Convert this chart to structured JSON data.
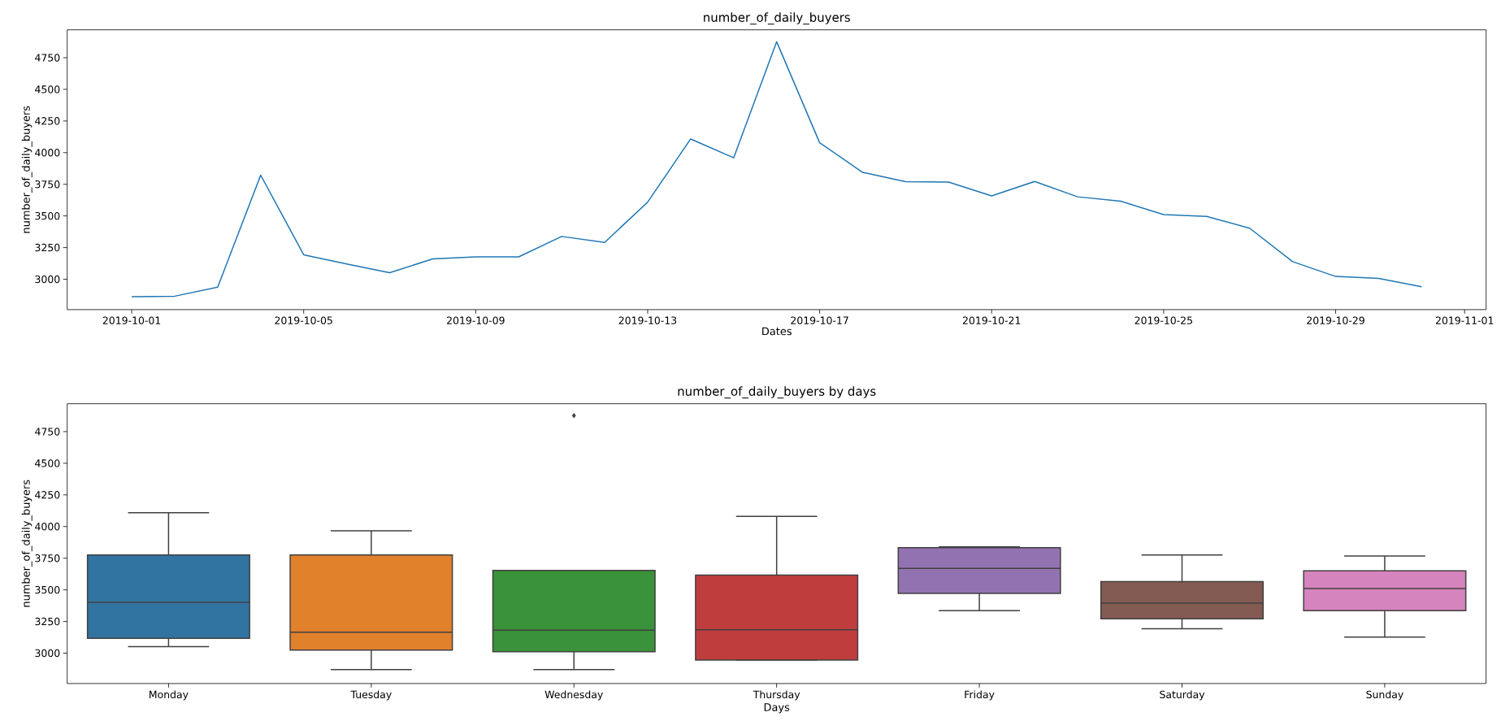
{
  "chart_data": [
    {
      "type": "line",
      "title": "number_of_daily_buyers",
      "xlabel": "Dates",
      "ylabel": "number_of_daily_buyers",
      "x": [
        "2019-10-01",
        "2019-10-02",
        "2019-10-03",
        "2019-10-04",
        "2019-10-05",
        "2019-10-06",
        "2019-10-07",
        "2019-10-08",
        "2019-10-09",
        "2019-10-10",
        "2019-10-11",
        "2019-10-12",
        "2019-10-13",
        "2019-10-14",
        "2019-10-15",
        "2019-10-16",
        "2019-10-17",
        "2019-10-18",
        "2019-10-19",
        "2019-10-20",
        "2019-10-21",
        "2019-10-22",
        "2019-10-23",
        "2019-10-24",
        "2019-10-25",
        "2019-10-26",
        "2019-10-27",
        "2019-10-28",
        "2019-10-29",
        "2019-10-30",
        "2019-10-31"
      ],
      "values": [
        2862,
        2866,
        2937,
        3822,
        3193,
        3120,
        3051,
        3161,
        3177,
        3177,
        3338,
        3291,
        3609,
        4108,
        3959,
        4876,
        4078,
        3844,
        3771,
        3767,
        3658,
        3772,
        3651,
        3616,
        3511,
        3496,
        3403,
        3139,
        3022,
        3007,
        2941
      ],
      "color": "#1f77b4",
      "marker": "none",
      "line_style": "solid",
      "xlim": [
        "2019-09-29T12:00",
        "2019-11-01T12:00"
      ],
      "xticks": [
        "2019-10-01",
        "2019-10-05",
        "2019-10-09",
        "2019-10-13",
        "2019-10-17",
        "2019-10-21",
        "2019-10-25",
        "2019-10-29",
        "2019-11-01"
      ],
      "ylim": [
        2760,
        4970
      ],
      "yticks": [
        3000,
        3250,
        3500,
        3750,
        4000,
        4250,
        4500,
        4750
      ]
    },
    {
      "type": "box",
      "title": "number_of_daily_buyers by days",
      "xlabel": "Days",
      "ylabel": "number_of_daily_buyers",
      "categories": [
        "Monday",
        "Tuesday",
        "Wednesday",
        "Thursday",
        "Friday",
        "Saturday",
        "Sunday"
      ],
      "boxes": [
        {
          "low": 3051,
          "q1": 3118,
          "median": 3401,
          "q3": 3775,
          "high": 4109
        },
        {
          "low": 2870,
          "q1": 3024,
          "median": 3165,
          "q3": 3775,
          "high": 3967
        },
        {
          "low": 2870,
          "q1": 3012,
          "median": 3181,
          "q3": 3653,
          "high": 3653,
          "outliers": [
            4876
          ]
        },
        {
          "low": 2945,
          "q1": 2945,
          "median": 3185,
          "q3": 3616,
          "high": 4081
        },
        {
          "low": 3336,
          "q1": 3472,
          "median": 3670,
          "q3": 3833,
          "high": 3840
        },
        {
          "low": 3193,
          "q1": 3271,
          "median": 3395,
          "q3": 3565,
          "high": 3775
        },
        {
          "low": 3127,
          "q1": 3336,
          "median": 3511,
          "q3": 3651,
          "high": 3767
        }
      ],
      "colors": [
        "#3274a1",
        "#e1812c",
        "#3a923a",
        "#c03d3e",
        "#9372b2",
        "#845b53",
        "#d684bd"
      ],
      "marker": "diamond",
      "ylim": [
        2760,
        4970
      ],
      "yticks": [
        3000,
        3250,
        3500,
        3750,
        4000,
        4250,
        4500,
        4750
      ]
    }
  ]
}
